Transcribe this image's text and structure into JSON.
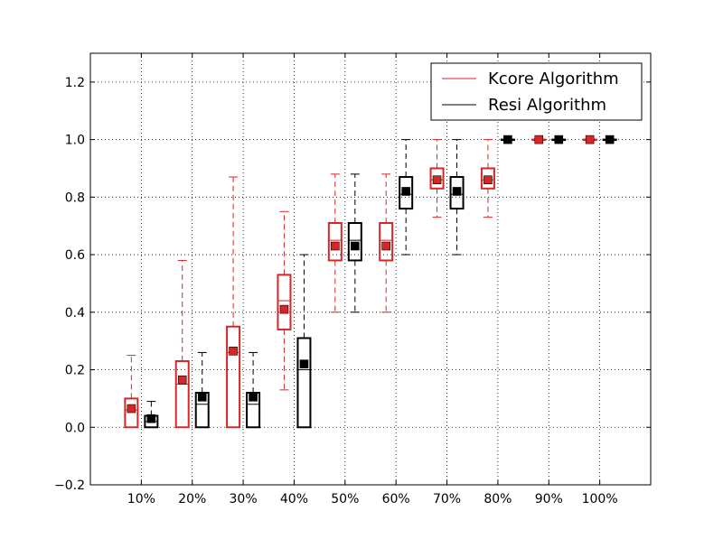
{
  "chart_data": {
    "type": "box",
    "title": "",
    "xlabel": "",
    "ylabel": "",
    "ylim": [
      -0.2,
      1.3
    ],
    "yticks": [
      -0.2,
      0.0,
      0.2,
      0.4,
      0.6,
      0.8,
      1.0,
      1.2
    ],
    "ytick_labels": [
      "−0.2",
      "0.0",
      "0.2",
      "0.4",
      "0.6",
      "0.8",
      "1.0",
      "1.2"
    ],
    "categories": [
      "10%",
      "20%",
      "30%",
      "40%",
      "50%",
      "60%",
      "70%",
      "80%",
      "90%",
      "100%"
    ],
    "grid": true,
    "legend_position": "top-right",
    "series": [
      {
        "name": "Kcore Algorithm",
        "color": "#d62728",
        "boxes": [
          {
            "min": 0.0,
            "q1": 0.0,
            "median": 0.06,
            "q3": 0.1,
            "max": 0.25,
            "mean": 0.065
          },
          {
            "min": 0.0,
            "q1": 0.0,
            "median": 0.15,
            "q3": 0.23,
            "max": 0.58,
            "mean": 0.165
          },
          {
            "min": 0.0,
            "q1": 0.0,
            "median": 0.26,
            "q3": 0.35,
            "max": 0.87,
            "mean": 0.265
          },
          {
            "min": 0.13,
            "q1": 0.34,
            "median": 0.44,
            "q3": 0.53,
            "max": 0.75,
            "mean": 0.41
          },
          {
            "min": 0.4,
            "q1": 0.58,
            "median": 0.65,
            "q3": 0.71,
            "max": 0.88,
            "mean": 0.63
          },
          {
            "min": 0.4,
            "q1": 0.58,
            "median": 0.65,
            "q3": 0.71,
            "max": 0.88,
            "mean": 0.63
          },
          {
            "min": 0.73,
            "q1": 0.83,
            "median": 0.86,
            "q3": 0.9,
            "max": 1.0,
            "mean": 0.86
          },
          {
            "min": 0.73,
            "q1": 0.83,
            "median": 0.86,
            "q3": 0.9,
            "max": 1.0,
            "mean": 0.86
          },
          {
            "min": 1.0,
            "q1": 1.0,
            "median": 1.0,
            "q3": 1.0,
            "max": 1.0,
            "mean": 1.0
          },
          {
            "min": 1.0,
            "q1": 1.0,
            "median": 1.0,
            "q3": 1.0,
            "max": 1.0,
            "mean": 1.0
          }
        ]
      },
      {
        "name": "Resi Algorithm",
        "color": "#000000",
        "boxes": [
          {
            "min": 0.0,
            "q1": 0.0,
            "median": 0.02,
            "q3": 0.04,
            "max": 0.09,
            "mean": 0.03
          },
          {
            "min": 0.0,
            "q1": 0.0,
            "median": 0.08,
            "q3": 0.12,
            "max": 0.26,
            "mean": 0.105
          },
          {
            "min": 0.0,
            "q1": 0.0,
            "median": 0.08,
            "q3": 0.12,
            "max": 0.26,
            "mean": 0.105
          },
          {
            "min": 0.0,
            "q1": 0.0,
            "median": 0.2,
            "q3": 0.31,
            "max": 0.6,
            "mean": 0.22
          },
          {
            "min": 0.4,
            "q1": 0.58,
            "median": 0.65,
            "q3": 0.71,
            "max": 0.88,
            "mean": 0.63
          },
          {
            "min": 0.6,
            "q1": 0.76,
            "median": 0.81,
            "q3": 0.87,
            "max": 1.0,
            "mean": 0.82
          },
          {
            "min": 0.6,
            "q1": 0.76,
            "median": 0.81,
            "q3": 0.87,
            "max": 1.0,
            "mean": 0.82
          },
          {
            "min": 1.0,
            "q1": 1.0,
            "median": 1.0,
            "q3": 1.0,
            "max": 1.0,
            "mean": 1.0
          },
          {
            "min": 1.0,
            "q1": 1.0,
            "median": 1.0,
            "q3": 1.0,
            "max": 1.0,
            "mean": 1.0
          },
          {
            "min": 1.0,
            "q1": 1.0,
            "median": 1.0,
            "q3": 1.0,
            "max": 1.0,
            "mean": 1.0
          }
        ]
      }
    ]
  }
}
